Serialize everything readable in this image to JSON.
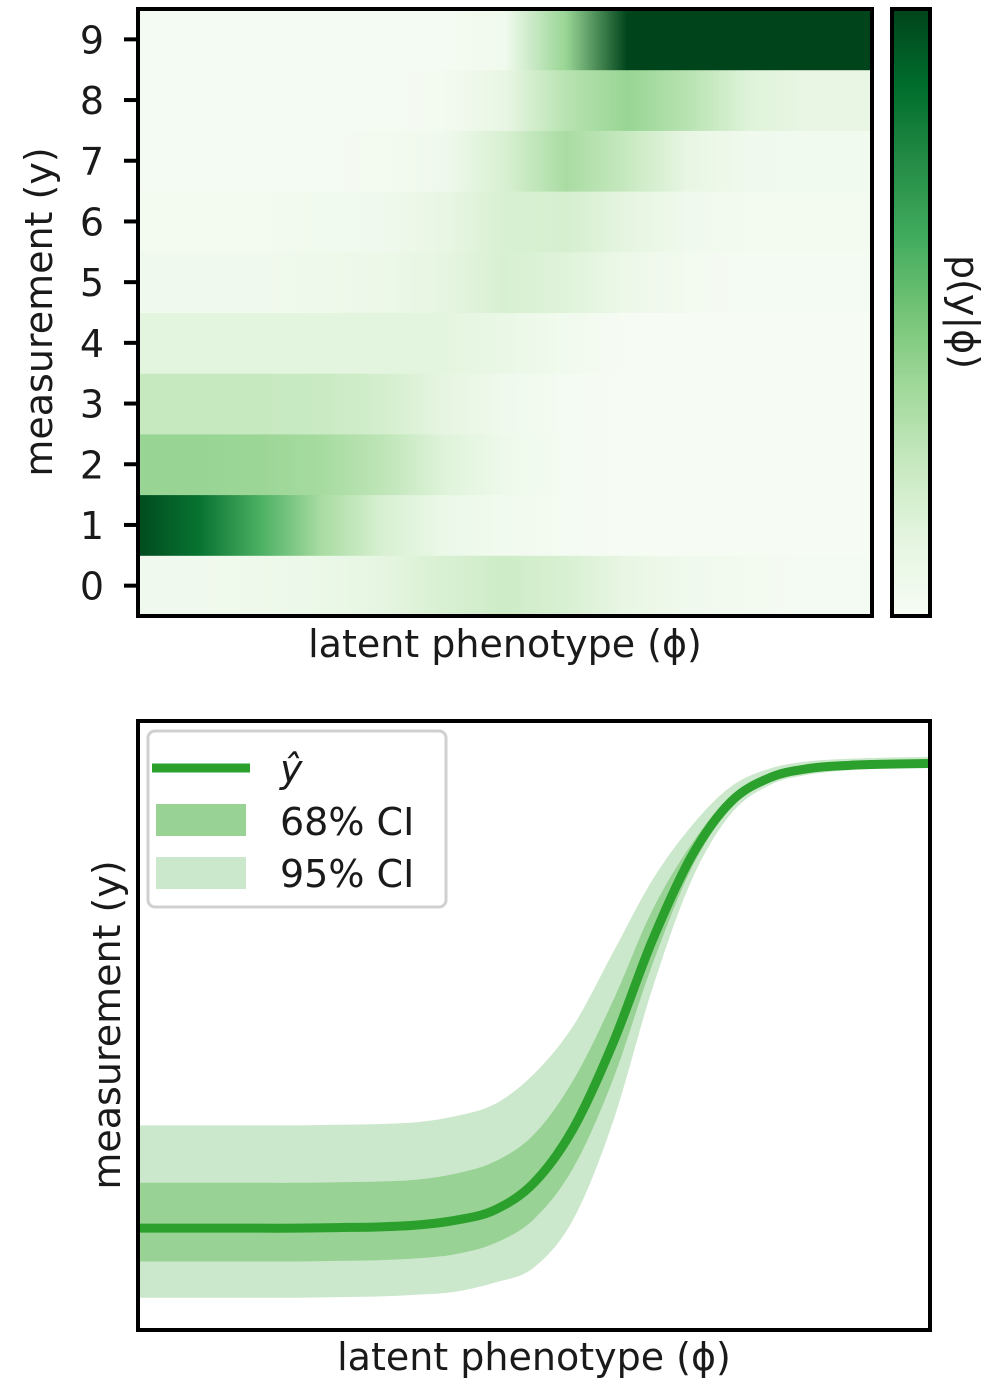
{
  "chart_data": [
    {
      "type": "heatmap",
      "xlabel": "latent phenotype (ϕ)",
      "ylabel": "measurement (y)",
      "colorbar_label": "p(y|ϕ)",
      "y_categories": [
        0,
        1,
        2,
        3,
        4,
        5,
        6,
        7,
        8,
        9
      ],
      "x_ticks_shown": false,
      "colormap": [
        "#f7fcf5",
        "#e5f5e0",
        "#c7e9c0",
        "#a1d99b",
        "#74c476",
        "#41ab5d",
        "#238b45",
        "#006d2c",
        "#00441b"
      ],
      "x_samples": 13,
      "values": [
        [
          0.05,
          0.05,
          0.06,
          0.08,
          0.12,
          0.18,
          0.22,
          0.18,
          0.1,
          0.05,
          0.03,
          0.02,
          0.02
        ],
        [
          0.98,
          0.85,
          0.6,
          0.35,
          0.18,
          0.08,
          0.04,
          0.02,
          0.01,
          0.01,
          0.01,
          0.01,
          0.01
        ],
        [
          0.4,
          0.4,
          0.39,
          0.36,
          0.28,
          0.15,
          0.06,
          0.02,
          0.01,
          0.01,
          0.01,
          0.01,
          0.01
        ],
        [
          0.25,
          0.25,
          0.25,
          0.24,
          0.2,
          0.12,
          0.05,
          0.02,
          0.01,
          0.01,
          0.01,
          0.01,
          0.01
        ],
        [
          0.13,
          0.13,
          0.13,
          0.13,
          0.13,
          0.13,
          0.09,
          0.04,
          0.01,
          0.01,
          0.01,
          0.01,
          0.01
        ],
        [
          0.05,
          0.05,
          0.05,
          0.06,
          0.07,
          0.12,
          0.18,
          0.15,
          0.07,
          0.03,
          0.02,
          0.02,
          0.02
        ],
        [
          0.03,
          0.03,
          0.03,
          0.04,
          0.05,
          0.1,
          0.18,
          0.19,
          0.12,
          0.05,
          0.03,
          0.03,
          0.03
        ],
        [
          0.02,
          0.02,
          0.02,
          0.02,
          0.03,
          0.05,
          0.18,
          0.35,
          0.25,
          0.1,
          0.05,
          0.04,
          0.04
        ],
        [
          0.02,
          0.02,
          0.02,
          0.02,
          0.02,
          0.03,
          0.1,
          0.3,
          0.4,
          0.3,
          0.15,
          0.1,
          0.1
        ],
        [
          0.02,
          0.02,
          0.02,
          0.02,
          0.02,
          0.02,
          0.04,
          0.4,
          1.0,
          1.0,
          1.0,
          1.0,
          1.0
        ]
      ]
    },
    {
      "type": "line",
      "xlabel": "latent phenotype (ϕ)",
      "ylabel": "measurement (y)",
      "x_ticks_shown": false,
      "y_ticks_shown": false,
      "xlim": [
        0,
        1
      ],
      "ylim": [
        0,
        1
      ],
      "legend": {
        "placement": "top-left",
        "entries": [
          "ŷ",
          "68% CI",
          "95% CI"
        ]
      },
      "colors": {
        "line": "#2ca02c",
        "ci68": "#98d294",
        "ci95": "#cce8cc"
      },
      "x": [
        0.0,
        0.05,
        0.1,
        0.15,
        0.2,
        0.25,
        0.3,
        0.35,
        0.4,
        0.45,
        0.5,
        0.55,
        0.6,
        0.65,
        0.7,
        0.75,
        0.8,
        0.85,
        0.9,
        0.95,
        1.0
      ],
      "series": [
        {
          "name": "ŷ",
          "values": [
            0.165,
            0.165,
            0.165,
            0.165,
            0.165,
            0.166,
            0.167,
            0.17,
            0.178,
            0.195,
            0.24,
            0.33,
            0.47,
            0.64,
            0.78,
            0.87,
            0.91,
            0.925,
            0.93,
            0.932,
            0.933
          ]
        },
        {
          "name": "68% CI",
          "lower": [
            0.11,
            0.11,
            0.11,
            0.11,
            0.11,
            0.111,
            0.112,
            0.115,
            0.122,
            0.14,
            0.18,
            0.265,
            0.41,
            0.6,
            0.76,
            0.86,
            0.905,
            0.92,
            0.926,
            0.928,
            0.929
          ],
          "upper": [
            0.24,
            0.24,
            0.24,
            0.24,
            0.24,
            0.241,
            0.242,
            0.245,
            0.255,
            0.275,
            0.32,
            0.41,
            0.54,
            0.69,
            0.8,
            0.88,
            0.915,
            0.93,
            0.935,
            0.937,
            0.938
          ]
        },
        {
          "name": "95% CI",
          "lower": [
            0.05,
            0.05,
            0.05,
            0.05,
            0.05,
            0.051,
            0.052,
            0.055,
            0.06,
            0.075,
            0.1,
            0.18,
            0.34,
            0.56,
            0.74,
            0.85,
            0.898,
            0.915,
            0.922,
            0.925,
            0.926
          ],
          "upper": [
            0.335,
            0.335,
            0.335,
            0.335,
            0.335,
            0.336,
            0.337,
            0.34,
            0.35,
            0.37,
            0.42,
            0.5,
            0.62,
            0.74,
            0.83,
            0.895,
            0.925,
            0.937,
            0.941,
            0.943,
            0.944
          ]
        }
      ]
    }
  ]
}
